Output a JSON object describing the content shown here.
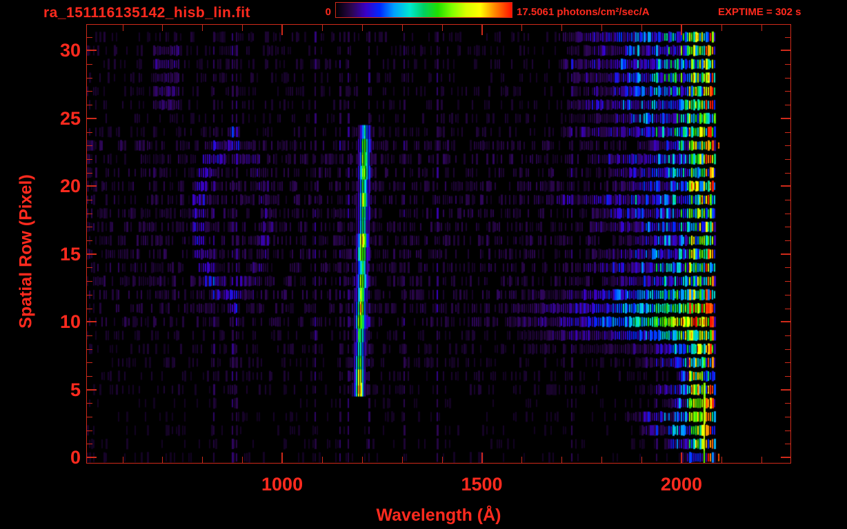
{
  "chart_data": {
    "type": "heatmap",
    "title": "ra_151116135142_hisb_lin.fit",
    "xlabel": "Wavelength (Å)",
    "ylabel": "Spatial Row (Pixel)",
    "exptime_label": "EXPTIME = 302 s",
    "xlim": [
      511,
      2273
    ],
    "ylim": [
      -0.4,
      31.9
    ],
    "xticks": [
      1000,
      1500,
      2000
    ],
    "xminor_step": 100,
    "yticks": [
      0,
      5,
      10,
      15,
      20,
      25,
      30
    ],
    "yminor_step": 1,
    "rows": 32,
    "grid": false,
    "colorbar": {
      "min": 0,
      "max": 17.5061,
      "min_label": "0",
      "max_label": "17.5061 photons/cm²/sec/A",
      "palette": [
        {
          "p": 0.0,
          "c": "#000000"
        },
        {
          "p": 0.09,
          "c": "#2c0650"
        },
        {
          "p": 0.17,
          "c": "#3a00c8"
        },
        {
          "p": 0.25,
          "c": "#0028ff"
        },
        {
          "p": 0.33,
          "c": "#00a0ff"
        },
        {
          "p": 0.42,
          "c": "#00e8d0"
        },
        {
          "p": 0.5,
          "c": "#00d060"
        },
        {
          "p": 0.58,
          "c": "#20e000"
        },
        {
          "p": 0.66,
          "c": "#80ff00"
        },
        {
          "p": 0.74,
          "c": "#d8ff00"
        },
        {
          "p": 0.82,
          "c": "#ffff00"
        },
        {
          "p": 0.9,
          "c": "#ff8c00"
        },
        {
          "p": 1.0,
          "c": "#ff1000"
        }
      ]
    },
    "colors": {
      "text": "#ff2a1e",
      "axis": "#d02a1a",
      "background": "#000000"
    },
    "noise_onset_bands": [
      {
        "rows": [
          24,
          31
        ],
        "onset": [
          1660,
          1770
        ]
      },
      {
        "rows": [
          12,
          23
        ],
        "onset": [
          1620,
          1930
        ]
      },
      {
        "rows": [
          1,
          11
        ],
        "onset": [
          1830,
          1990
        ]
      },
      {
        "rows": [
          0,
          0
        ],
        "onset": [
          1990,
          2000
        ]
      }
    ],
    "features": [
      {
        "name": "emission-line",
        "type": "vertical-emission-line",
        "wavelength": 1193,
        "tilt_A_per_row": 0.74,
        "row_range": [
          5,
          24
        ],
        "halo_sigma_A": 10,
        "core_sigma_A": 5,
        "row_brightness": {
          "5": 0.95,
          "6": 0.92,
          "7": 0.7,
          "8": 0.5,
          "9": 0.6,
          "10": 0.8,
          "11": 0.85,
          "12": 0.6,
          "13": 0.7,
          "14": 0.5,
          "15": 0.8,
          "16": 0.85,
          "17": 0.5,
          "18": 0.45,
          "19": 0.65,
          "20": 0.5,
          "21": 0.7,
          "22": 0.75,
          "23": 0.55,
          "24": 0.35
        }
      },
      {
        "name": "horizontal-streak",
        "type": "horizontal-streak",
        "row_range": [
          8,
          12
        ],
        "peak_rows": [
          10,
          11
        ],
        "wavelength_range": [
          1500,
          2075
        ]
      },
      {
        "name": "detector-edge-glow",
        "type": "vertical-band",
        "wavelength_range": [
          2018,
          2082
        ],
        "red_speckle_range": [
          2058,
          2082
        ]
      },
      {
        "name": "edge-green-line",
        "type": "vertical-line",
        "wavelength_range": [
          2057,
          2062
        ],
        "row_range": [
          0,
          5
        ]
      },
      {
        "name": "faint-ring",
        "type": "ellipse",
        "center_wavelength": 874,
        "center_row": 17.5,
        "radius_wavelength": 86,
        "radius_rows": 5.6
      },
      {
        "name": "faint-patch",
        "type": "patch",
        "wavelength_range": [
          675,
          745
        ],
        "row_range": [
          26,
          30
        ]
      },
      {
        "name": "stray-red-dots",
        "type": "dots",
        "wavelength_range": [
          2086,
          2118
        ]
      }
    ]
  }
}
